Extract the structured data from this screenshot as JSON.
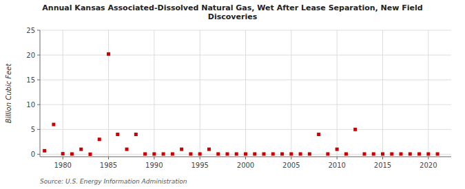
{
  "chart_data": {
    "type": "scatter",
    "title": "Annual Kansas Associated-Dissolved Natural Gas, Wet After Lease Separation, New Field\nDiscoveries",
    "ylabel": "Billion Cubic Feet",
    "annotations": [
      "Source: U.S. Energy Information Administration"
    ],
    "x": [
      1978,
      1979,
      1980,
      1981,
      1982,
      1983,
      1984,
      1985,
      1986,
      1987,
      1988,
      1989,
      1990,
      1991,
      1992,
      1993,
      1994,
      1995,
      1996,
      1997,
      1998,
      1999,
      2000,
      2001,
      2002,
      2003,
      2004,
      2005,
      2006,
      2007,
      2008,
      2009,
      2010,
      2011,
      2012,
      2013,
      2014,
      2015,
      2016,
      2017,
      2018,
      2019,
      2020,
      2021
    ],
    "values": [
      0.7,
      6.0,
      0.1,
      0.05,
      1.0,
      0.0,
      3.0,
      20.2,
      4.0,
      1.0,
      4.0,
      0.05,
      0.05,
      0.05,
      0.05,
      1.0,
      0.05,
      0.05,
      1.0,
      0.05,
      0.05,
      0.05,
      0.05,
      0.05,
      0.05,
      0.05,
      0.05,
      0.05,
      0.05,
      0.05,
      4.0,
      0.05,
      1.0,
      0.05,
      5.0,
      0.05,
      0.05,
      0.05,
      0.05,
      0.05,
      0.05,
      0.05,
      0.05,
      0.05
    ],
    "color": "#cc0000",
    "marker": "square",
    "xlim": [
      1977.5,
      2022.5
    ],
    "ylim": [
      -0.5,
      25
    ],
    "xticks": [
      1980,
      1985,
      1990,
      1995,
      2000,
      2005,
      2010,
      2015,
      2020
    ],
    "yticks": [
      0,
      5,
      10,
      15,
      20,
      25
    ],
    "grid": true
  }
}
